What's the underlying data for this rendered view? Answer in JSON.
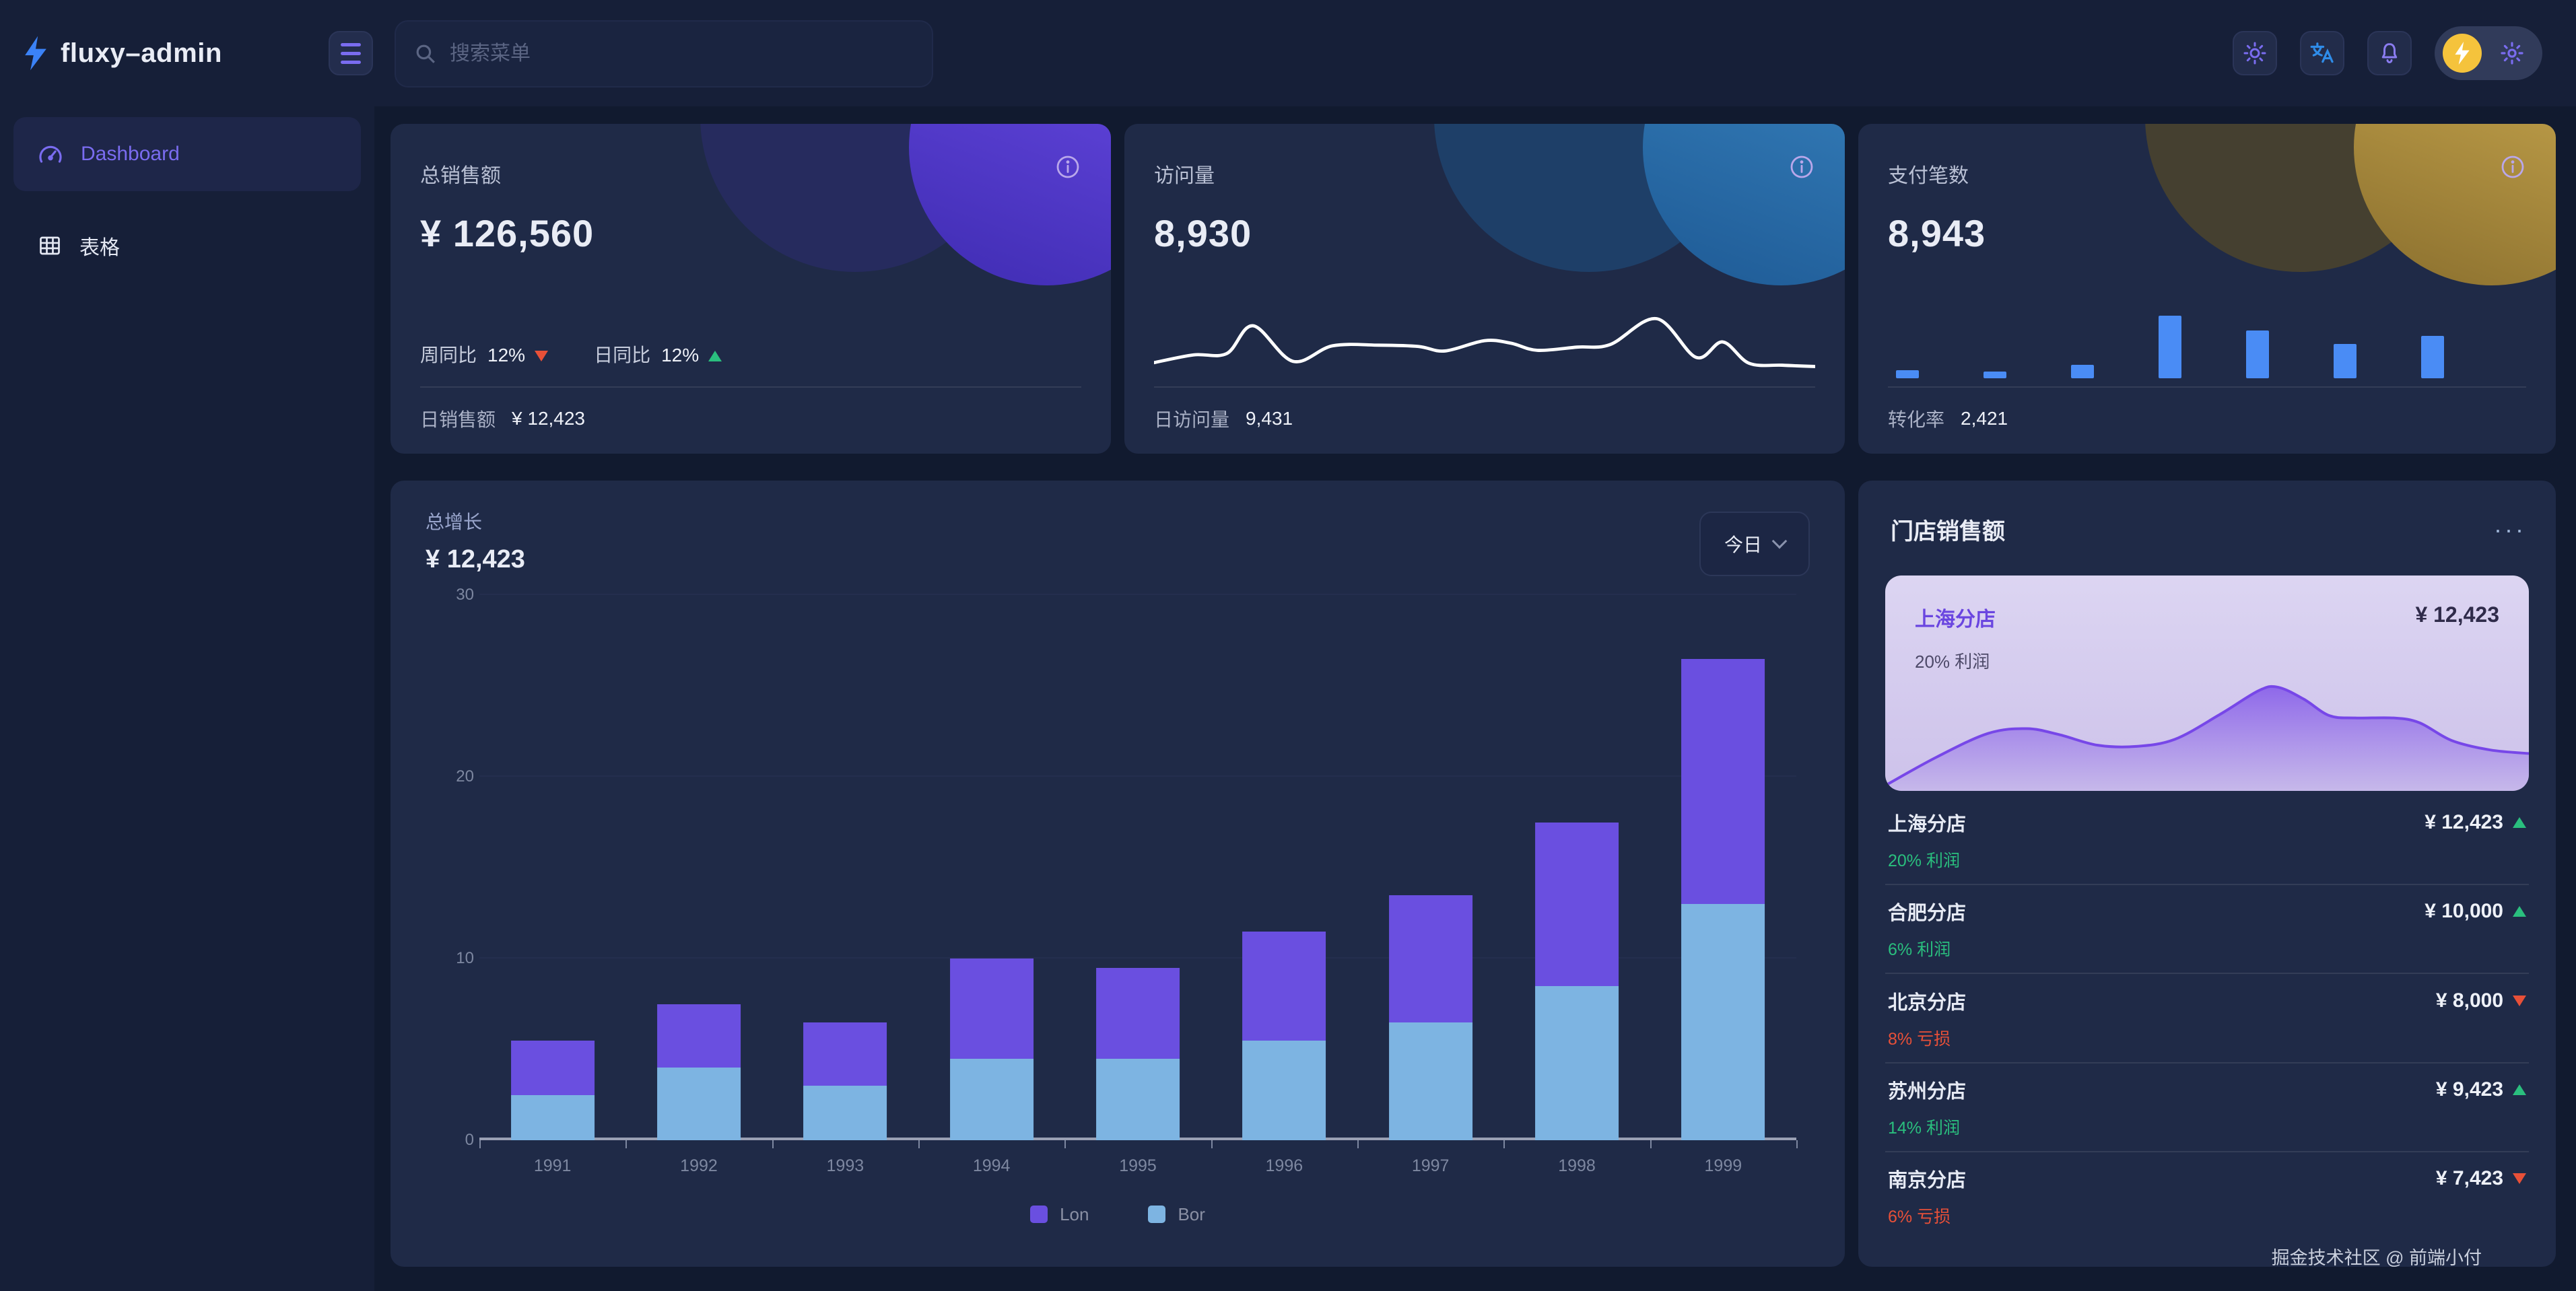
{
  "brand": {
    "name": "fluxy–admin"
  },
  "topbar": {
    "search_placeholder": "搜索菜单"
  },
  "sidebar": {
    "items": [
      {
        "label": "Dashboard",
        "icon": "dashboard-gauge-icon",
        "active": true
      },
      {
        "label": "表格",
        "icon": "table-icon",
        "active": false
      }
    ]
  },
  "cards": {
    "sales": {
      "title": "总销售额",
      "value": "¥ 126,560",
      "week_label": "周同比",
      "week_value": "12%",
      "week_trend": "down",
      "day_label": "日同比",
      "day_value": "12%",
      "day_trend": "up",
      "footer_label": "日销售额",
      "footer_value": "¥ 12,423"
    },
    "visits": {
      "title": "访问量",
      "value": "8,930",
      "footer_label": "日访问量",
      "footer_value": "9,431"
    },
    "payments": {
      "title": "支付笔数",
      "value": "8,943",
      "footer_label": "转化率",
      "footer_value": "2,421"
    }
  },
  "growth": {
    "title": "总增长",
    "value": "¥ 12,423",
    "range_label": "今日"
  },
  "stores": {
    "title": "门店销售额",
    "menu_label": "···",
    "highlight": {
      "name": "上海分店",
      "value": "¥ 12,423",
      "note": "20% 利润"
    },
    "items": [
      {
        "name": "上海分店",
        "value": "¥ 12,423",
        "change": "20% 利润",
        "trend": "up"
      },
      {
        "name": "合肥分店",
        "value": "¥ 10,000",
        "change": "6% 利润",
        "trend": "up"
      },
      {
        "name": "北京分店",
        "value": "¥ 8,000",
        "change": "8% 亏损",
        "trend": "down"
      },
      {
        "name": "苏州分店",
        "value": "¥ 9,423",
        "change": "14% 利润",
        "trend": "up"
      },
      {
        "name": "南京分店",
        "value": "¥ 7,423",
        "change": "6% 亏损",
        "trend": "down"
      }
    ]
  },
  "page_footer": "掘金技术社区 @ 前端小付",
  "colors": {
    "accent": "#7a6cf0",
    "up_green": "#2abf7e",
    "down_red": "#e85038",
    "avatar_gold": "#f5c33c",
    "translate_blue": "#2f8ce8",
    "brand_blue": "#3b82f6"
  },
  "chart_data": [
    {
      "id": "growth-stacked-bar",
      "type": "bar",
      "stacked": true,
      "title": "总增长",
      "categories": [
        "1991",
        "1992",
        "1993",
        "1994",
        "1995",
        "1996",
        "1997",
        "1998",
        "1999"
      ],
      "series": [
        {
          "name": "Lon",
          "color": "#6a4fe0",
          "values": [
            3,
            3.5,
            3.5,
            5.5,
            5,
            6,
            7,
            9,
            13.5
          ]
        },
        {
          "name": "Bor",
          "color": "#7db4e2",
          "values": [
            2.5,
            4,
            3,
            4.5,
            4.5,
            5.5,
            6.5,
            8.5,
            13
          ]
        }
      ],
      "ylim": [
        0,
        30
      ],
      "yticks": [
        0,
        10,
        20,
        30
      ],
      "grid": true,
      "legend_position": "bottom"
    },
    {
      "id": "visits-sparkline",
      "type": "line",
      "color": "#ffffff",
      "points_pct": [
        [
          0,
          82
        ],
        [
          6,
          70
        ],
        [
          11,
          68
        ],
        [
          15,
          25
        ],
        [
          21,
          80
        ],
        [
          27,
          56
        ],
        [
          34,
          55
        ],
        [
          40,
          57
        ],
        [
          44,
          64
        ],
        [
          50,
          48
        ],
        [
          54,
          52
        ],
        [
          58,
          63
        ],
        [
          64,
          58
        ],
        [
          69,
          54
        ],
        [
          76,
          14
        ],
        [
          82,
          74
        ],
        [
          86,
          50
        ],
        [
          90,
          83
        ],
        [
          95,
          86
        ],
        [
          100,
          88
        ]
      ]
    },
    {
      "id": "payments-minibar",
      "type": "bar",
      "color": "#4a8cf5",
      "values": [
        12,
        10,
        20,
        93,
        71,
        51,
        63
      ],
      "ylim": [
        0,
        100
      ]
    },
    {
      "id": "store-area",
      "type": "area",
      "color": "#7747e8",
      "points_pct": [
        [
          0,
          100
        ],
        [
          8,
          76
        ],
        [
          16,
          56
        ],
        [
          22,
          52
        ],
        [
          27,
          57
        ],
        [
          33,
          66
        ],
        [
          39,
          67
        ],
        [
          45,
          61
        ],
        [
          52,
          40
        ],
        [
          58,
          20
        ],
        [
          61,
          17
        ],
        [
          65,
          27
        ],
        [
          69,
          41
        ],
        [
          73,
          43
        ],
        [
          79,
          43
        ],
        [
          83,
          47
        ],
        [
          88,
          62
        ],
        [
          94,
          70
        ],
        [
          100,
          73
        ]
      ]
    }
  ]
}
